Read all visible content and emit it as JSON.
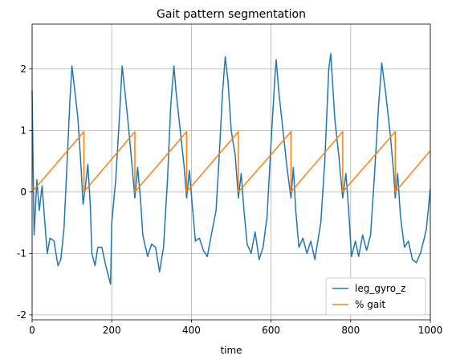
{
  "chart_data": {
    "type": "line",
    "title": "Gait pattern segmentation",
    "xlabel": "time",
    "xlim": [
      0,
      1000
    ],
    "ylim": [
      -2.08,
      2.73
    ],
    "xticks": [
      0,
      200,
      400,
      600,
      800,
      1000
    ],
    "yticks": [
      -2,
      -1,
      0,
      1,
      2
    ],
    "grid": true,
    "legend": "lower right",
    "series": [
      {
        "name": "leg_gyro_z",
        "color": "#1f77b4",
        "x": [
          0,
          5,
          12,
          18,
          25,
          32,
          38,
          45,
          55,
          65,
          72,
          80,
          88,
          95,
          100,
          108,
          115,
          122,
          128,
          134,
          140,
          146,
          150,
          158,
          165,
          175,
          185,
          197,
          200,
          210,
          220,
          226,
          232,
          240,
          250,
          258,
          265,
          272,
          278,
          290,
          300,
          310,
          320,
          330,
          340,
          348,
          356,
          362,
          372,
          382,
          388,
          395,
          402,
          410,
          420,
          430,
          440,
          450,
          462,
          470,
          478,
          485,
          492,
          500,
          510,
          518,
          525,
          532,
          540,
          550,
          560,
          570,
          580,
          590,
          600,
          610,
          613,
          620,
          630,
          640,
          650,
          656,
          662,
          670,
          680,
          690,
          700,
          710,
          725,
          735,
          745,
          750,
          760,
          770,
          780,
          788,
          795,
          802,
          812,
          820,
          830,
          840,
          850,
          860,
          870,
          878,
          888,
          900,
          908,
          912,
          918,
          925,
          935,
          945,
          955,
          965,
          975,
          985,
          990,
          1000
        ],
        "values": [
          1.65,
          -0.7,
          0.2,
          -0.3,
          0.1,
          -0.5,
          -1.0,
          -0.75,
          -0.8,
          -1.2,
          -1.1,
          -0.6,
          0.5,
          1.5,
          2.05,
          1.6,
          1.2,
          0.5,
          -0.2,
          0.1,
          0.45,
          -0.2,
          -1.0,
          -1.2,
          -0.9,
          -0.9,
          -1.2,
          -1.5,
          -0.5,
          0.2,
          1.3,
          2.05,
          1.7,
          1.2,
          0.5,
          -0.1,
          0.4,
          -0.1,
          -0.7,
          -1.05,
          -0.85,
          -0.9,
          -1.3,
          -0.9,
          0.2,
          1.4,
          2.05,
          1.6,
          1.0,
          0.4,
          -0.1,
          0.35,
          -0.2,
          -0.8,
          -0.75,
          -0.95,
          -1.05,
          -0.7,
          -0.3,
          0.6,
          1.6,
          2.2,
          1.8,
          1.0,
          0.6,
          -0.1,
          0.3,
          -0.3,
          -0.85,
          -1.0,
          -0.65,
          -1.1,
          -0.9,
          -0.4,
          0.8,
          1.9,
          2.15,
          1.6,
          1.0,
          0.4,
          -0.1,
          0.4,
          -0.3,
          -0.9,
          -0.75,
          -1.0,
          -0.8,
          -1.1,
          -0.5,
          0.5,
          2.0,
          2.25,
          1.2,
          0.6,
          -0.1,
          0.3,
          -0.3,
          -1.05,
          -0.8,
          -1.05,
          -0.7,
          -0.95,
          -0.7,
          0.3,
          1.4,
          2.1,
          1.6,
          0.9,
          0.3,
          -0.1,
          0.3,
          -0.4,
          -0.9,
          -0.8,
          -1.1,
          -1.15,
          -1.0,
          -0.75,
          -0.6,
          0.05
        ]
      },
      {
        "name": "% gait",
        "color": "#ff7f0e",
        "x": [
          0,
          130,
          130,
          258,
          258,
          388,
          388,
          518,
          518,
          650,
          650,
          780,
          780,
          912,
          912,
          1000
        ],
        "values": [
          0,
          0.98,
          0,
          0.98,
          0,
          0.98,
          0,
          0.98,
          0,
          0.98,
          0,
          0.98,
          0,
          0.98,
          0,
          0.67
        ]
      }
    ]
  }
}
